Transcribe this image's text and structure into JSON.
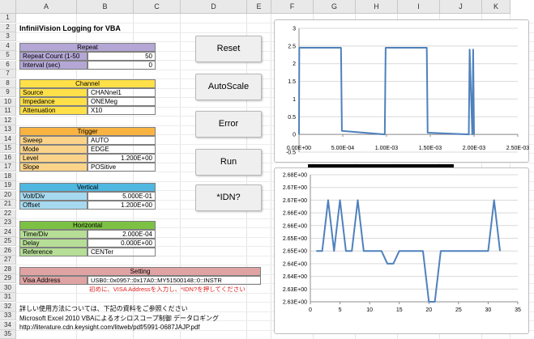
{
  "columns": [
    "A",
    "B",
    "C",
    "D",
    "E",
    "F",
    "G",
    "H",
    "I",
    "J",
    "K"
  ],
  "rows": [
    "1",
    "2",
    "3",
    "4",
    "5",
    "6",
    "7",
    "8",
    "9",
    "10",
    "11",
    "12",
    "13",
    "14",
    "15",
    "16",
    "17",
    "18",
    "19",
    "20",
    "21",
    "22",
    "23",
    "24",
    "25",
    "26",
    "27",
    "28",
    "29",
    "30",
    "31",
    "32",
    "33",
    "34",
    "35"
  ],
  "title": "InfiniiVision Logging for VBA",
  "colors": {
    "repeat": "#b4a7d6",
    "channel": "#ffe048",
    "channel_label": "#ffe048",
    "trigger": "#f9b340",
    "trigger_label": "#fbd48a",
    "vertical": "#4fb7e0",
    "vertical_label": "#a6d9ef",
    "horizontal": "#7cc143",
    "horizontal_label": "#b6de96",
    "setting": "#e0a3a3",
    "line": "#4f81bd",
    "note": "#e02020"
  },
  "repeat": {
    "header": "Repeat",
    "rows": [
      {
        "label": "Repeat Count (1-50",
        "value": "50"
      },
      {
        "label": "Interval (sec)",
        "value": "0"
      }
    ]
  },
  "channel": {
    "header": "Channel",
    "rows": [
      {
        "label": "Source",
        "value": "CHANnel1"
      },
      {
        "label": "Impedance",
        "value": "ONEMeg"
      },
      {
        "label": "Attenuation",
        "value": "X10"
      }
    ]
  },
  "trigger": {
    "header": "Trigger",
    "rows": [
      {
        "label": "Sweep",
        "value": "AUTO"
      },
      {
        "label": "Mode",
        "value": "EDGE"
      },
      {
        "label": "Level",
        "value": "1.200E+00"
      },
      {
        "label": "Slope",
        "value": "POSitive"
      }
    ]
  },
  "vertical": {
    "header": "Vertical",
    "rows": [
      {
        "label": "Volt/Div",
        "value": "5.000E-01"
      },
      {
        "label": "Offset",
        "value": "1.200E+00"
      }
    ]
  },
  "horizontal": {
    "header": "Horizontal",
    "rows": [
      {
        "label": "Time/Div",
        "value": "2.000E-04"
      },
      {
        "label": "Delay",
        "value": "0.000E+00"
      },
      {
        "label": "Reference",
        "value": "CENTer"
      }
    ]
  },
  "setting": {
    "header": "Setting",
    "label": "Visa Address",
    "value": "USB0::0x0957::0x17A0::MY51500148::0::INSTR",
    "note": "初めに、VISA Addressを入力し、*IDN?を押してください"
  },
  "buttons": {
    "reset": "Reset",
    "autoscale": "AutoScale",
    "error": "Error",
    "run": "Run",
    "idn": "*IDN?"
  },
  "footer": {
    "line1": "詳しい使用方法については、下記の資料をご参照ください",
    "line2": "Microsoft Excel 2010 VBAによるオシロスコープ制御 データロギング",
    "line3": "http://literature.cdn.keysight.com/litweb/pdf/5991-0687JAJP.pdf"
  },
  "chart_data": [
    {
      "type": "line",
      "title": "",
      "xlabel": "",
      "ylabel": "",
      "xlim": [
        0,
        0.0025
      ],
      "ylim": [
        -0.5,
        3
      ],
      "x_ticks": [
        "0.00E+00",
        "5.00E-04",
        "1.00E-03",
        "1.50E-03",
        "2.00E-03",
        "2.50E-03"
      ],
      "y_ticks": [
        "3",
        "2.5",
        "2",
        "1.5",
        "1",
        "0.5",
        "0",
        "-0.5"
      ],
      "grid": true,
      "series": [
        {
          "x": [
            0,
            3e-06,
            0.00048,
            0.00049,
            0.00098,
            0.00099,
            0.00146,
            0.00147,
            0.00194,
            0.00195,
            0.00198,
            0.00199,
            0.002
          ],
          "y": [
            0,
            2.45,
            2.45,
            0.1,
            0,
            2.45,
            2.45,
            0.05,
            0,
            2.4,
            0,
            2.4,
            0
          ]
        }
      ]
    },
    {
      "type": "line",
      "title": "",
      "xlabel": "",
      "ylabel": "",
      "xlim": [
        0,
        35
      ],
      "ylim": [
        2.63,
        2.68
      ],
      "x_ticks": [
        "0",
        "5",
        "10",
        "15",
        "20",
        "25",
        "30",
        "35"
      ],
      "y_ticks": [
        "2.68E+00",
        "2.67E+00",
        "2.67E+00",
        "2.66E+00",
        "2.66E+00",
        "2.65E+00",
        "2.65E+00",
        "2.64E+00",
        "2.64E+00",
        "2.63E+00",
        "2.63E+00"
      ],
      "grid": true,
      "series": [
        {
          "x": [
            1,
            2,
            3,
            4,
            5,
            6,
            7,
            8,
            9,
            10,
            11,
            12,
            13,
            14,
            15,
            16,
            17,
            18,
            19,
            20,
            21,
            22,
            23,
            24,
            25,
            26,
            27,
            28,
            29,
            30,
            31,
            32
          ],
          "y": [
            2.65,
            2.65,
            2.67,
            2.65,
            2.67,
            2.65,
            2.65,
            2.67,
            2.65,
            2.65,
            2.65,
            2.65,
            2.645,
            2.645,
            2.65,
            2.65,
            2.65,
            2.65,
            2.65,
            2.63,
            2.63,
            2.65,
            2.65,
            2.65,
            2.65,
            2.65,
            2.65,
            2.65,
            2.65,
            2.65,
            2.67,
            2.65
          ]
        }
      ]
    }
  ]
}
